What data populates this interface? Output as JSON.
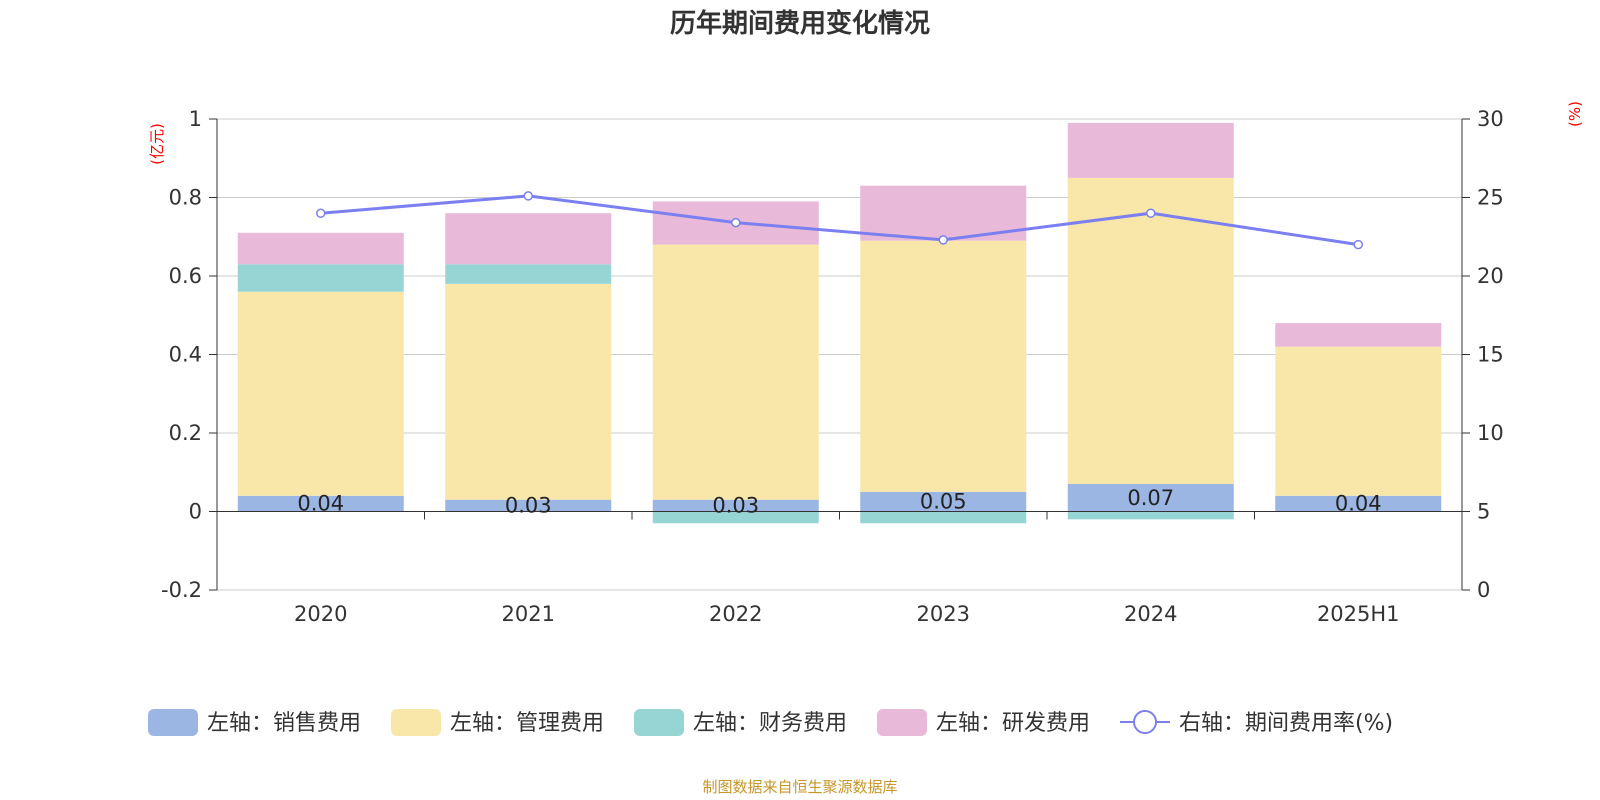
{
  "chart_data": {
    "type": "bar",
    "title": "历年期间费用变化情况",
    "categories": [
      "2020",
      "2021",
      "2022",
      "2023",
      "2024",
      "2025H1"
    ],
    "left_axis": {
      "unit": "(亿元)",
      "ylim": [
        -0.2,
        1
      ],
      "ticks": [
        "-0.2",
        "0",
        "0.2",
        "0.4",
        "0.6",
        "0.8",
        "1"
      ]
    },
    "right_axis": {
      "unit": "(%)",
      "ylim": [
        0,
        30
      ],
      "ticks": [
        "0",
        "5",
        "10",
        "15",
        "20",
        "25",
        "30"
      ]
    },
    "grid": true,
    "legend_position": "bottom",
    "series": [
      {
        "name": "左轴：销售费用",
        "type": "bar",
        "axis": "left",
        "color": "#9bb6e2",
        "values": [
          0.04,
          0.03,
          0.03,
          0.05,
          0.07,
          0.04
        ],
        "labels": [
          "0.04",
          "0.03",
          "0.03",
          "0.05",
          "0.07",
          "0.04"
        ]
      },
      {
        "name": "左轴：管理费用",
        "type": "bar",
        "axis": "left",
        "color": "#f8e7a9",
        "values": [
          0.52,
          0.55,
          0.65,
          0.64,
          0.78,
          0.38
        ]
      },
      {
        "name": "左轴：财务费用",
        "type": "bar",
        "axis": "left",
        "color": "#97d5d4",
        "values": [
          0.07,
          0.05,
          -0.03,
          -0.03,
          -0.02,
          0
        ]
      },
      {
        "name": "左轴：研发费用",
        "type": "bar",
        "axis": "left",
        "color": "#e8b9d9",
        "values": [
          0.08,
          0.13,
          0.11,
          0.14,
          0.14,
          0.06
        ]
      },
      {
        "name": "右轴：期间费用率(%)",
        "type": "line",
        "axis": "right",
        "color": "#7b7ff0",
        "values": [
          24.0,
          25.1,
          23.4,
          22.3,
          24.0,
          22.0
        ]
      }
    ],
    "source": "制图数据来自恒生聚源数据库"
  }
}
